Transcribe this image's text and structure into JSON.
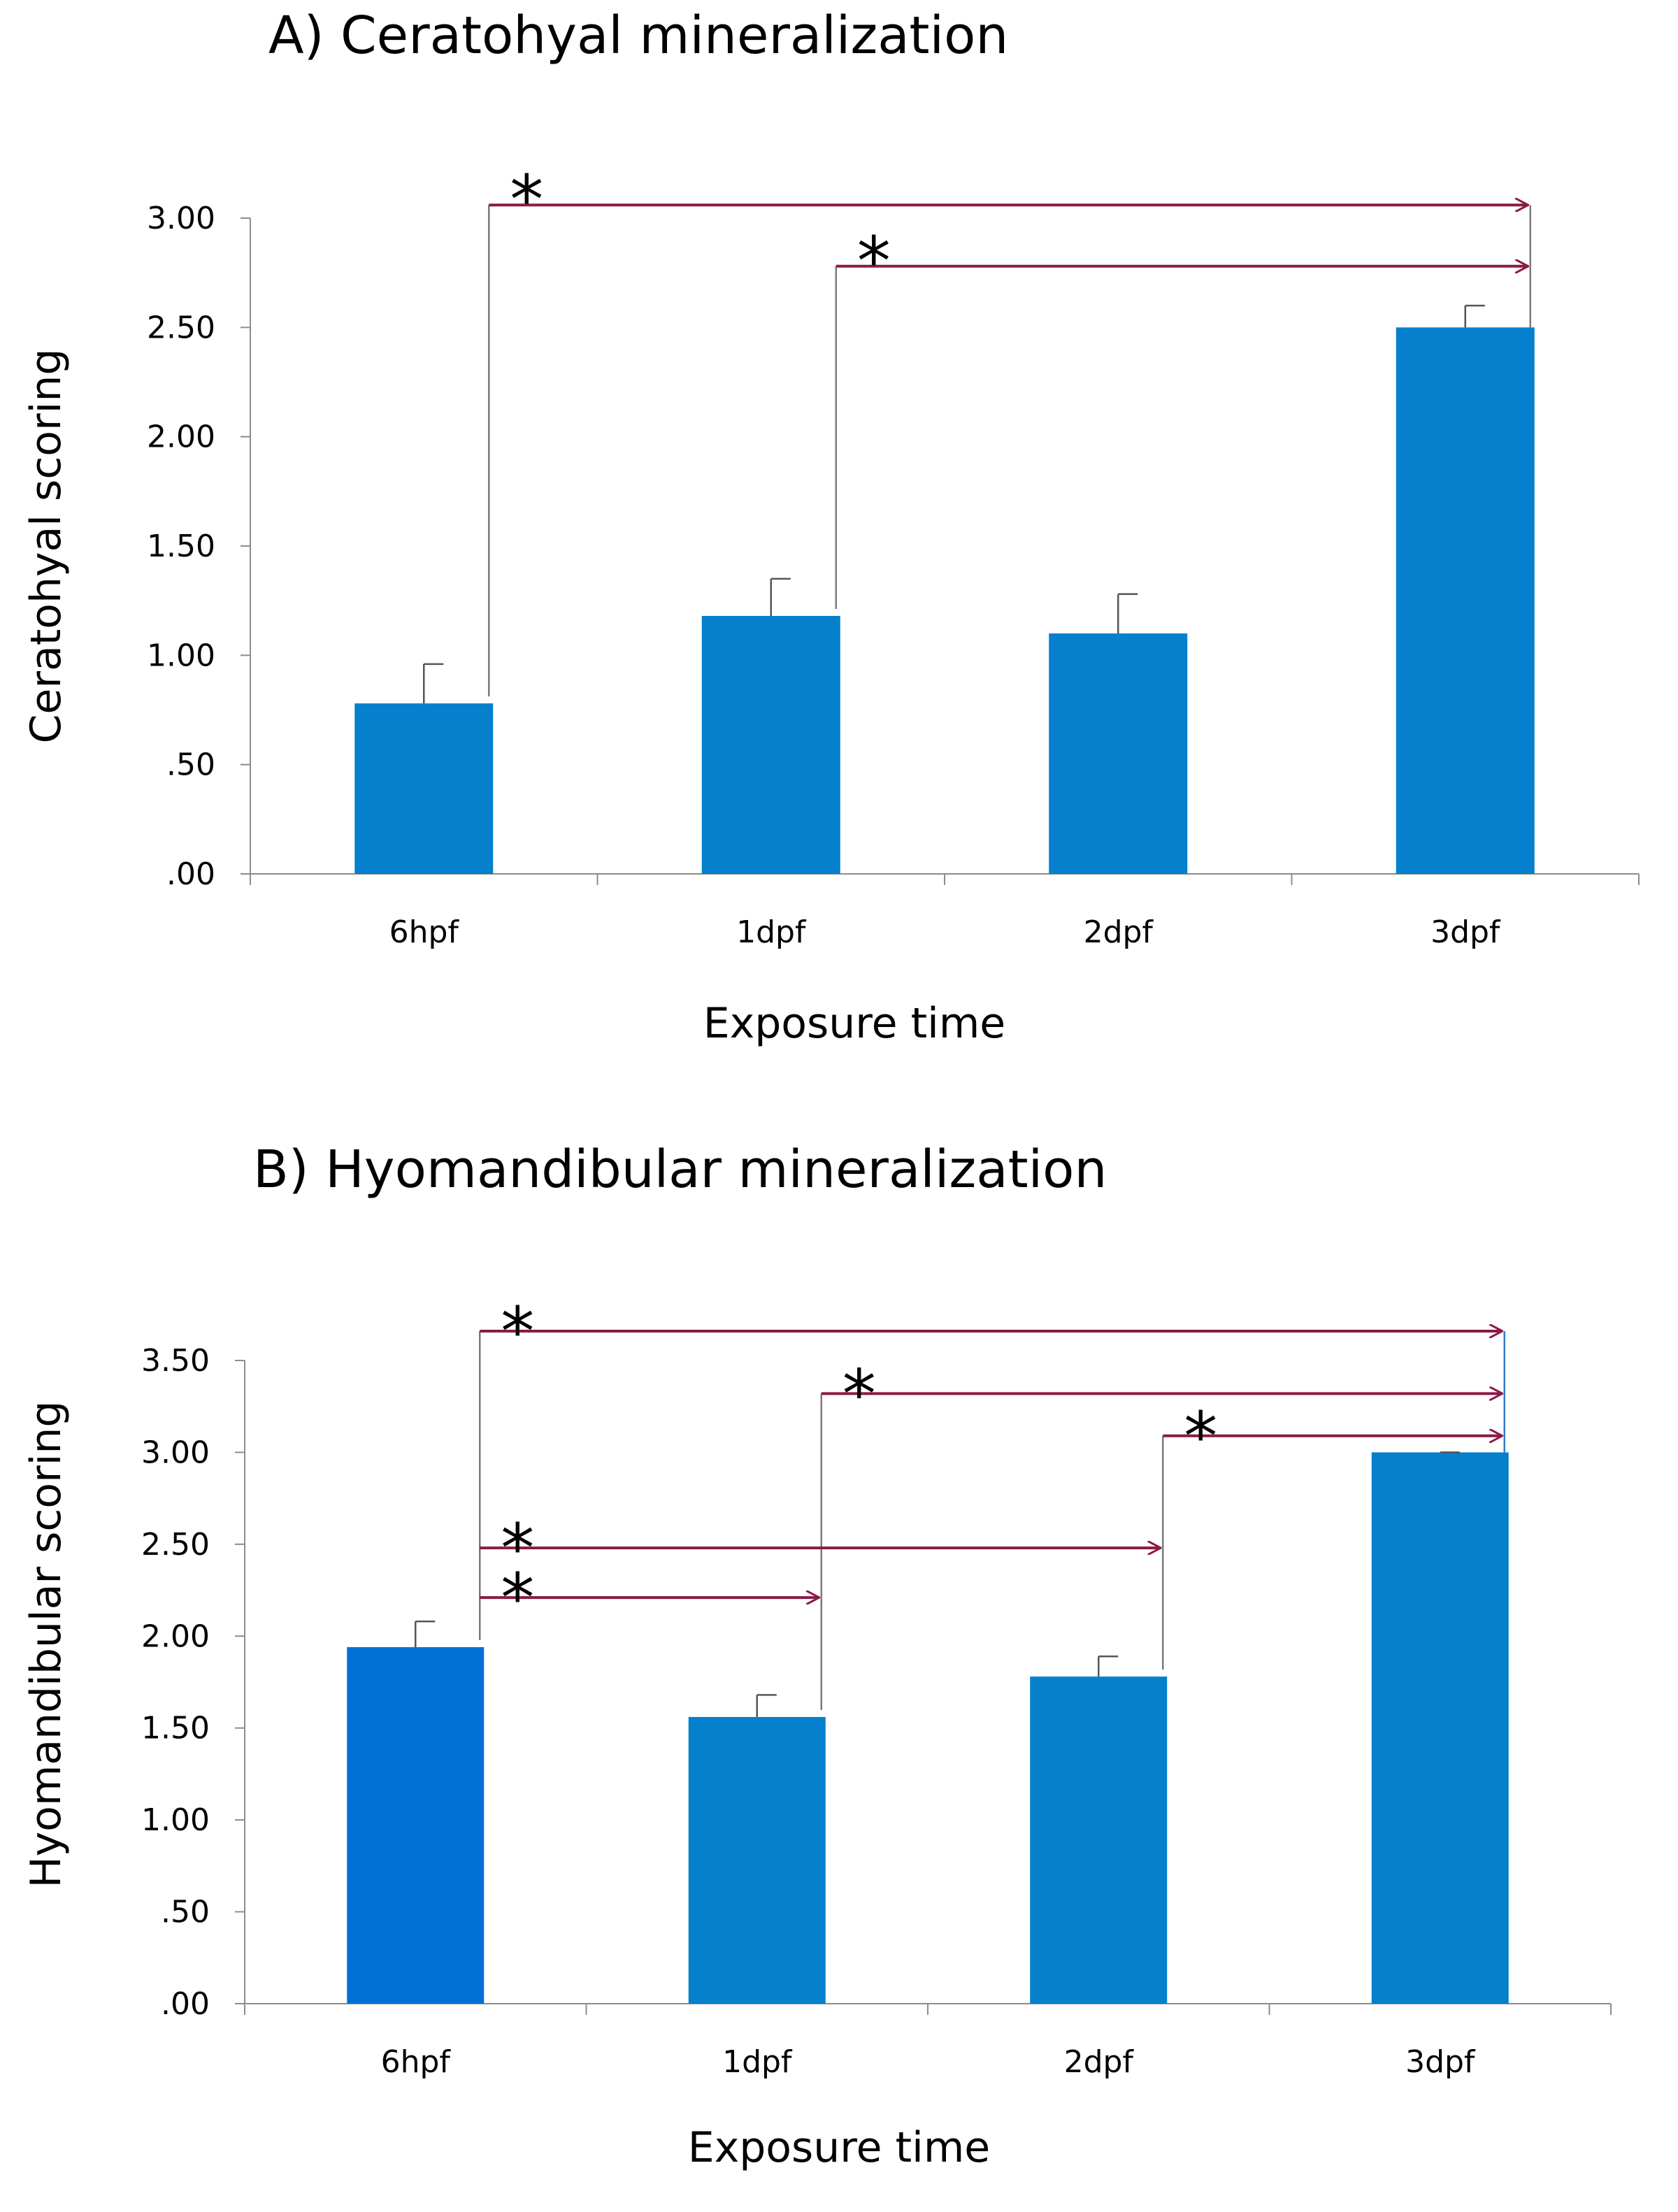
{
  "chart_data": [
    {
      "type": "bar",
      "title": "A) Ceratohyal mineralization",
      "xlabel": "Exposure time",
      "ylabel": "Ceratohyal scoring",
      "categories": [
        "6hpf",
        "1dpf",
        "2dpf",
        "3dpf"
      ],
      "values": [
        0.78,
        1.18,
        1.1,
        2.5
      ],
      "errors": [
        0.18,
        0.17,
        0.18,
        0.1
      ],
      "ylim": [
        0,
        3.0
      ],
      "ytick_values": [
        0,
        0.5,
        1.0,
        1.5,
        2.0,
        2.5,
        3.0
      ],
      "ytick_labels": [
        ".00",
        ".50",
        "1.00",
        "1.50",
        "2.00",
        "2.50",
        "3.00"
      ],
      "bar_colors": [
        "#0480cc",
        "#0480cc",
        "#0480cc",
        "#0480cc"
      ],
      "arrow_color": "#8b1a47",
      "significance": [
        {
          "from": "6hpf",
          "to": "3dpf",
          "label": "*",
          "y": 3.06
        },
        {
          "from": "1dpf",
          "to": "3dpf",
          "label": "*",
          "y": 2.78
        }
      ]
    },
    {
      "type": "bar",
      "title": "B) Hyomandibular mineralization",
      "xlabel": "Exposure time",
      "ylabel": "Hyomandibular scoring",
      "categories": [
        "6hpf",
        "1dpf",
        "2dpf",
        "3dpf"
      ],
      "values": [
        1.94,
        1.56,
        1.78,
        3.0
      ],
      "errors": [
        0.14,
        0.12,
        0.11,
        0.0
      ],
      "ylim": [
        0,
        3.5
      ],
      "ytick_values": [
        0,
        0.5,
        1.0,
        1.5,
        2.0,
        2.5,
        3.0,
        3.5
      ],
      "ytick_labels": [
        ".00",
        ".50",
        "1.00",
        "1.50",
        "2.00",
        "2.50",
        "3.00",
        "3.50"
      ],
      "bar_colors": [
        "#0370d6",
        "#0480cc",
        "#0480cc",
        "#0480cc"
      ],
      "arrow_color": "#8b1a47",
      "significance": [
        {
          "from": "6hpf",
          "to": "3dpf",
          "label": "*",
          "y": 3.66
        },
        {
          "from": "1dpf",
          "to": "3dpf",
          "label": "*",
          "y": 3.32
        },
        {
          "from": "2dpf",
          "to": "3dpf",
          "label": "*",
          "y": 3.09
        },
        {
          "from": "6hpf",
          "to": "2dpf",
          "label": "*",
          "y": 2.48
        },
        {
          "from": "6hpf",
          "to": "1dpf",
          "label": "*",
          "y": 2.21
        }
      ]
    }
  ]
}
